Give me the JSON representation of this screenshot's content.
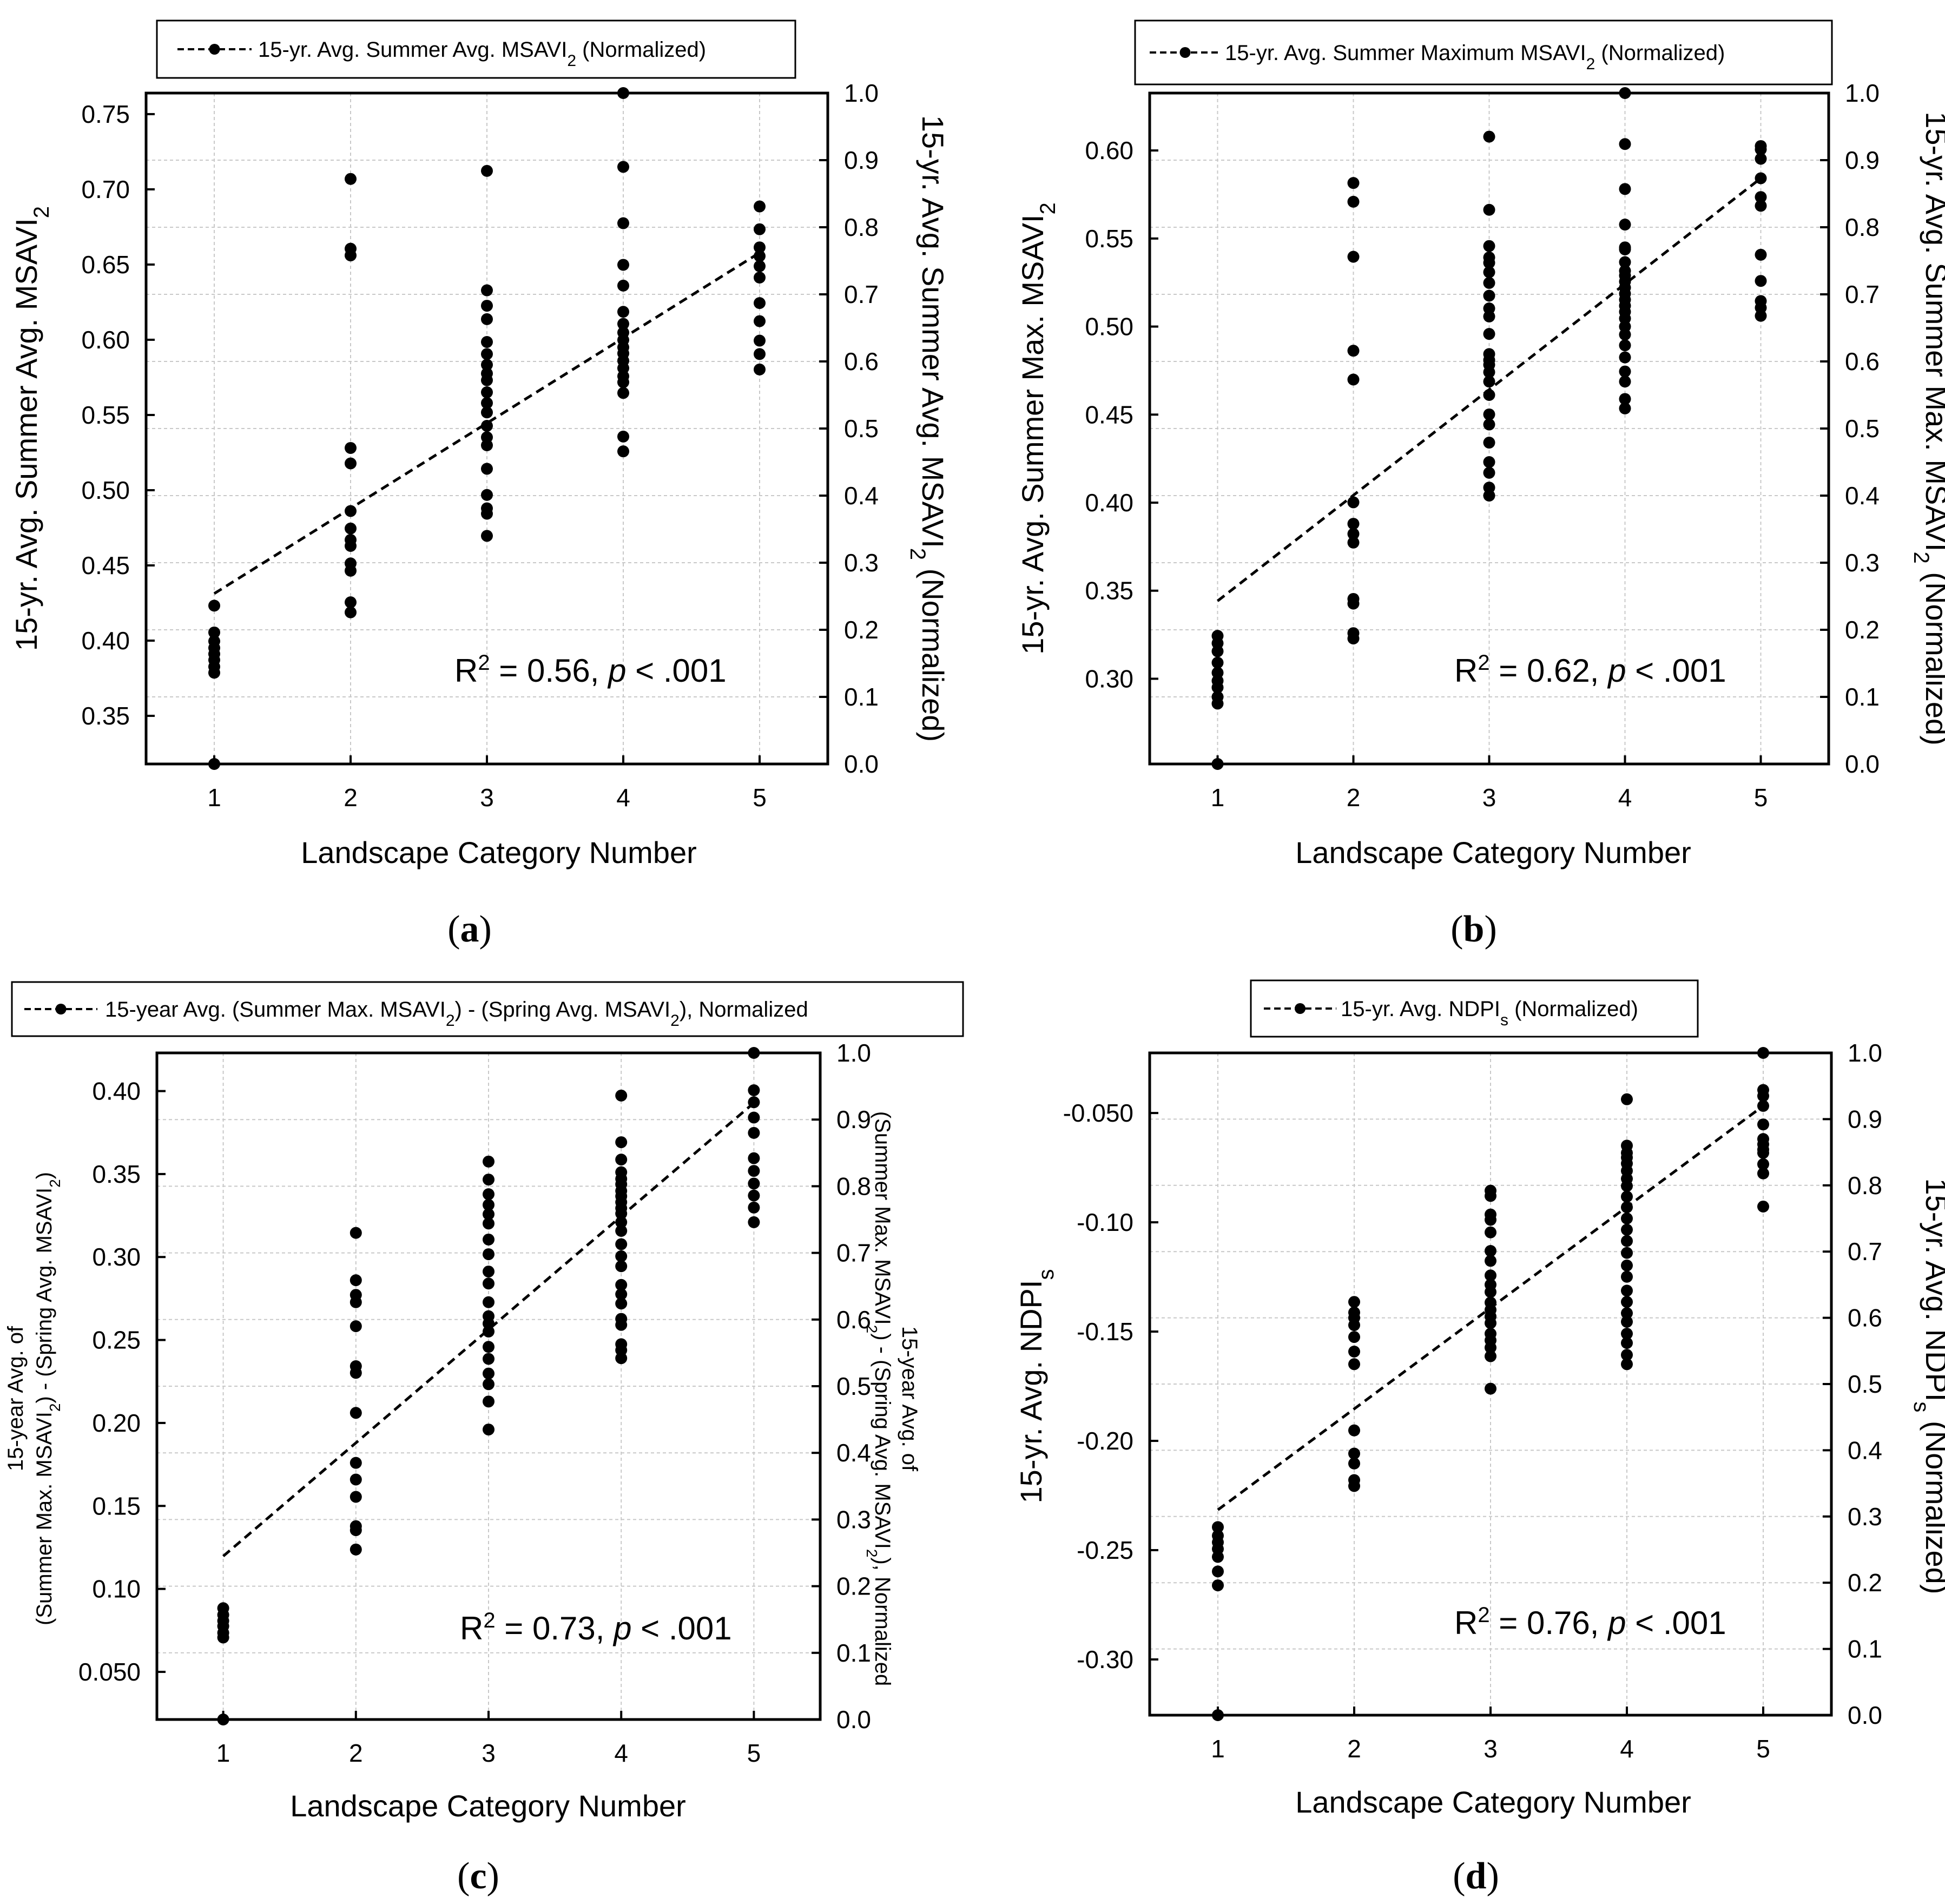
{
  "chart_data": [
    {
      "type": "scatter",
      "panel_label": "(a)",
      "xlabel": "Landscape Category Number",
      "ylabel_left": [
        "15-yr. Avg. Summer Avg. MSAVI",
        "2",
        ""
      ],
      "ylabel_right": [
        "15-yr. Avg. Summer Avg. MSAVI",
        "2",
        " (Normalized)"
      ],
      "legend": [
        "15-yr. Avg. Summer Avg. MSAVI",
        "2",
        " (Normalized)"
      ],
      "stat_r2": "R",
      "stat_sup": "2",
      "stat_eq": " = 0.56, ",
      "stat_p": "p",
      "stat_pval": " < .001",
      "xlim": [
        0.5,
        5.5
      ],
      "ylim": [
        0.318,
        0.764
      ],
      "x_ticks": [
        1,
        2,
        3,
        4,
        5
      ],
      "y_ticks": [
        0.35,
        0.4,
        0.45,
        0.5,
        0.55,
        0.6,
        0.65,
        0.7,
        0.75
      ],
      "y_tick_labels": [
        "0.35",
        "0.40",
        "0.45",
        "0.50",
        "0.55",
        "0.60",
        "0.65",
        "0.70",
        "0.75"
      ],
      "y2_ticks": [
        0.0,
        0.1,
        0.2,
        0.3,
        0.4,
        0.5,
        0.6,
        0.7,
        0.8,
        0.9,
        1.0
      ],
      "y2_tick_labels": [
        "0.0",
        "0.1",
        "0.2",
        "0.3",
        "0.4",
        "0.5",
        "0.6",
        "0.7",
        "0.8",
        "0.9",
        "1.0"
      ],
      "trend": {
        "x": [
          1,
          5
        ],
        "y": [
          0.254,
          0.762
        ]
      },
      "points": [
        {
          "x": 1,
          "ys": [
            0.0,
            0.136,
            0.145,
            0.155,
            0.164,
            0.173,
            0.183,
            0.196,
            0.236
          ]
        },
        {
          "x": 2,
          "ys": [
            0.226,
            0.241,
            0.288,
            0.299,
            0.325,
            0.334,
            0.351,
            0.377,
            0.448,
            0.471,
            0.758,
            0.768,
            0.872
          ]
        },
        {
          "x": 3,
          "ys": [
            0.34,
            0.373,
            0.381,
            0.401,
            0.44,
            0.475,
            0.487,
            0.504,
            0.524,
            0.538,
            0.554,
            0.572,
            0.582,
            0.595,
            0.611,
            0.629,
            0.663,
            0.683,
            0.706,
            0.884
          ]
        },
        {
          "x": 4,
          "ys": [
            0.466,
            0.488,
            0.553,
            0.569,
            0.578,
            0.59,
            0.601,
            0.612,
            0.621,
            0.632,
            0.643,
            0.656,
            0.674,
            0.713,
            0.744,
            0.806,
            0.89,
            1.0
          ]
        },
        {
          "x": 5,
          "ys": [
            0.588,
            0.611,
            0.631,
            0.66,
            0.687,
            0.725,
            0.742,
            0.757,
            0.77,
            0.797,
            0.831
          ]
        }
      ]
    },
    {
      "type": "scatter",
      "panel_label": "(b)",
      "xlabel": "Landscape Category Number",
      "ylabel_left": [
        "15-yr. Avg. Summer Max. MSAVI",
        "2",
        ""
      ],
      "ylabel_right": [
        "15-yr. Avg. Summer Max. MSAVI",
        "2",
        " (Normalized)"
      ],
      "legend": [
        "15-yr. Avg. Summer Maximum MSAVI",
        "2",
        " (Normalized)"
      ],
      "stat_r2": "R",
      "stat_sup": "2",
      "stat_eq": " = 0.62, ",
      "stat_p": "p",
      "stat_pval": " < .001",
      "xlim": [
        0.5,
        5.5
      ],
      "ylim": [
        0.2516,
        0.6326
      ],
      "x_ticks": [
        1,
        2,
        3,
        4,
        5
      ],
      "y_ticks": [
        0.3,
        0.35,
        0.4,
        0.45,
        0.5,
        0.55,
        0.6
      ],
      "y_tick_labels": [
        "0.30",
        "0.35",
        "0.40",
        "0.45",
        "0.50",
        "0.55",
        "0.60"
      ],
      "y2_ticks": [
        0.0,
        0.1,
        0.2,
        0.3,
        0.4,
        0.5,
        0.6,
        0.7,
        0.8,
        0.9,
        1.0
      ],
      "y2_tick_labels": [
        "0.0",
        "0.1",
        "0.2",
        "0.3",
        "0.4",
        "0.5",
        "0.6",
        "0.7",
        "0.8",
        "0.9",
        "1.0"
      ],
      "trend": {
        "x": [
          1,
          5
        ],
        "y": [
          0.243,
          0.873
        ]
      },
      "points": [
        {
          "x": 1,
          "ys": [
            0.0,
            0.09,
            0.1,
            0.114,
            0.124,
            0.136,
            0.151,
            0.168,
            0.18,
            0.191
          ]
        },
        {
          "x": 2,
          "ys": [
            0.187,
            0.195,
            0.239,
            0.246,
            0.33,
            0.343,
            0.358,
            0.39,
            0.573,
            0.616,
            0.756,
            0.838,
            0.866
          ]
        },
        {
          "x": 3,
          "ys": [
            0.4,
            0.412,
            0.434,
            0.45,
            0.479,
            0.506,
            0.521,
            0.55,
            0.57,
            0.584,
            0.595,
            0.602,
            0.611,
            0.641,
            0.667,
            0.679,
            0.698,
            0.717,
            0.733,
            0.747,
            0.755,
            0.772,
            0.826,
            0.935
          ]
        },
        {
          "x": 4,
          "ys": [
            0.53,
            0.544,
            0.57,
            0.585,
            0.606,
            0.624,
            0.64,
            0.652,
            0.664,
            0.674,
            0.683,
            0.692,
            0.701,
            0.71,
            0.719,
            0.728,
            0.735,
            0.748,
            0.767,
            0.77,
            0.804,
            0.857,
            0.924,
            1.0
          ]
        },
        {
          "x": 5,
          "ys": [
            0.668,
            0.68,
            0.69,
            0.72,
            0.759,
            0.832,
            0.845,
            0.873,
            0.902,
            0.916,
            0.921
          ]
        }
      ]
    },
    {
      "type": "scatter",
      "panel_label": "(c)",
      "xlabel": "Landscape Category Number",
      "ylabel_left_line1": "15-year Avg. of",
      "ylabel_left_line2": [
        "(Summer Max. MSAVI",
        "2",
        ") - (Spring  Avg. MSAVI",
        "2",
        ")"
      ],
      "ylabel_right_line1": "15-year Avg. of",
      "ylabel_right_line2": [
        "(Summer Max. MSAVI",
        "2",
        ") - (Spring  Avg. MSAVI",
        "2",
        "), Normalized"
      ],
      "legend": [
        "15-year Avg. (Summer Max. MSAVI",
        "2",
        ") - (Spring  Avg. MSAVI",
        "2",
        "), Normalized"
      ],
      "stat_r2": "R",
      "stat_sup": "2",
      "stat_eq": " = 0.73, ",
      "stat_p": "p",
      "stat_pval": " < .001",
      "xlim": [
        0.5,
        5.5
      ],
      "ylim": [
        0.0213,
        0.423
      ],
      "x_ticks": [
        1,
        2,
        3,
        4,
        5
      ],
      "y_ticks": [
        0.05,
        0.1,
        0.15,
        0.2,
        0.25,
        0.3,
        0.35,
        0.4
      ],
      "y_tick_labels": [
        "0.050",
        "0.10",
        "0.15",
        "0.20",
        "0.25",
        "0.30",
        "0.35",
        "0.40"
      ],
      "y2_ticks": [
        0.0,
        0.1,
        0.2,
        0.3,
        0.4,
        0.5,
        0.6,
        0.7,
        0.8,
        0.9,
        1.0
      ],
      "y2_tick_labels": [
        "0.0",
        "0.1",
        "0.2",
        "0.3",
        "0.4",
        "0.5",
        "0.6",
        "0.7",
        "0.8",
        "0.9",
        "1.0"
      ],
      "trend": {
        "x": [
          1,
          5
        ],
        "y": [
          0.245,
          0.925
        ]
      },
      "points": [
        {
          "x": 1,
          "ys": [
            0.0,
            0.123,
            0.13,
            0.14,
            0.148,
            0.157,
            0.167
          ]
        },
        {
          "x": 2,
          "ys": [
            0.255,
            0.284,
            0.29,
            0.334,
            0.36,
            0.385,
            0.46,
            0.52,
            0.53,
            0.59,
            0.626,
            0.637,
            0.659,
            0.73
          ]
        },
        {
          "x": 3,
          "ys": [
            0.435,
            0.477,
            0.503,
            0.519,
            0.541,
            0.559,
            0.582,
            0.594,
            0.605,
            0.626,
            0.654,
            0.672,
            0.698,
            0.72,
            0.744,
            0.758,
            0.772,
            0.788,
            0.81,
            0.837
          ]
        },
        {
          "x": 4,
          "ys": [
            0.542,
            0.554,
            0.563,
            0.592,
            0.601,
            0.624,
            0.638,
            0.652,
            0.68,
            0.695,
            0.713,
            0.733,
            0.746,
            0.759,
            0.767,
            0.776,
            0.785,
            0.793,
            0.803,
            0.811,
            0.821,
            0.84,
            0.866,
            0.936
          ]
        },
        {
          "x": 5,
          "ys": [
            0.746,
            0.768,
            0.786,
            0.804,
            0.823,
            0.842,
            0.88,
            0.903,
            0.926,
            0.944,
            1.0
          ]
        }
      ]
    },
    {
      "type": "scatter",
      "panel_label": "(d)",
      "xlabel": "Landscape Category Number",
      "ylabel_left": [
        "15-yr. Avg. NDPI",
        "s",
        ""
      ],
      "ylabel_right": [
        "15-yr. Avg. NDPI",
        "s",
        " (Normalized)"
      ],
      "legend": [
        "15-yr. Avg. NDPI",
        "s",
        " (Normalized)"
      ],
      "stat_r2": "R",
      "stat_sup": "2",
      "stat_eq": " = 0.76, ",
      "stat_p": "p",
      "stat_pval": " < .001",
      "xlim": [
        0.5,
        5.5
      ],
      "ylim": [
        -0.3255,
        -0.0225
      ],
      "x_ticks": [
        1,
        2,
        3,
        4,
        5
      ],
      "y_ticks": [
        -0.3,
        -0.25,
        -0.2,
        -0.15,
        -0.1,
        -0.05
      ],
      "y_tick_labels": [
        "-0.30",
        "-0.25",
        "-0.20",
        "-0.15",
        "-0.10",
        "-0.050"
      ],
      "y2_ticks": [
        0.0,
        0.1,
        0.2,
        0.3,
        0.4,
        0.5,
        0.6,
        0.7,
        0.8,
        0.9,
        1.0
      ],
      "y2_tick_labels": [
        "0.0",
        "0.1",
        "0.2",
        "0.3",
        "0.4",
        "0.5",
        "0.6",
        "0.7",
        "0.8",
        "0.9",
        "1.0"
      ],
      "trend": {
        "x": [
          1,
          5
        ],
        "y": [
          0.31,
          0.92
        ]
      },
      "points": [
        {
          "x": 1,
          "ys": [
            0.0,
            0.196,
            0.217,
            0.239,
            0.251,
            0.261,
            0.271,
            0.284
          ]
        },
        {
          "x": 2,
          "ys": [
            0.346,
            0.355,
            0.38,
            0.395,
            0.43,
            0.53,
            0.549,
            0.571,
            0.589,
            0.6,
            0.608,
            0.624
          ]
        },
        {
          "x": 3,
          "ys": [
            0.493,
            0.542,
            0.555,
            0.566,
            0.576,
            0.592,
            0.602,
            0.612,
            0.623,
            0.639,
            0.65,
            0.664,
            0.686,
            0.701,
            0.729,
            0.748,
            0.756,
            0.784,
            0.792
          ]
        },
        {
          "x": 4,
          "ys": [
            0.53,
            0.544,
            0.562,
            0.576,
            0.594,
            0.607,
            0.624,
            0.641,
            0.662,
            0.679,
            0.698,
            0.716,
            0.733,
            0.75,
            0.767,
            0.783,
            0.799,
            0.81,
            0.822,
            0.833,
            0.842,
            0.849,
            0.86,
            0.93
          ]
        },
        {
          "x": 5,
          "ys": [
            0.768,
            0.818,
            0.832,
            0.849,
            0.854,
            0.862,
            0.87,
            0.892,
            0.92,
            0.935,
            0.944,
            1.0
          ]
        }
      ]
    }
  ]
}
